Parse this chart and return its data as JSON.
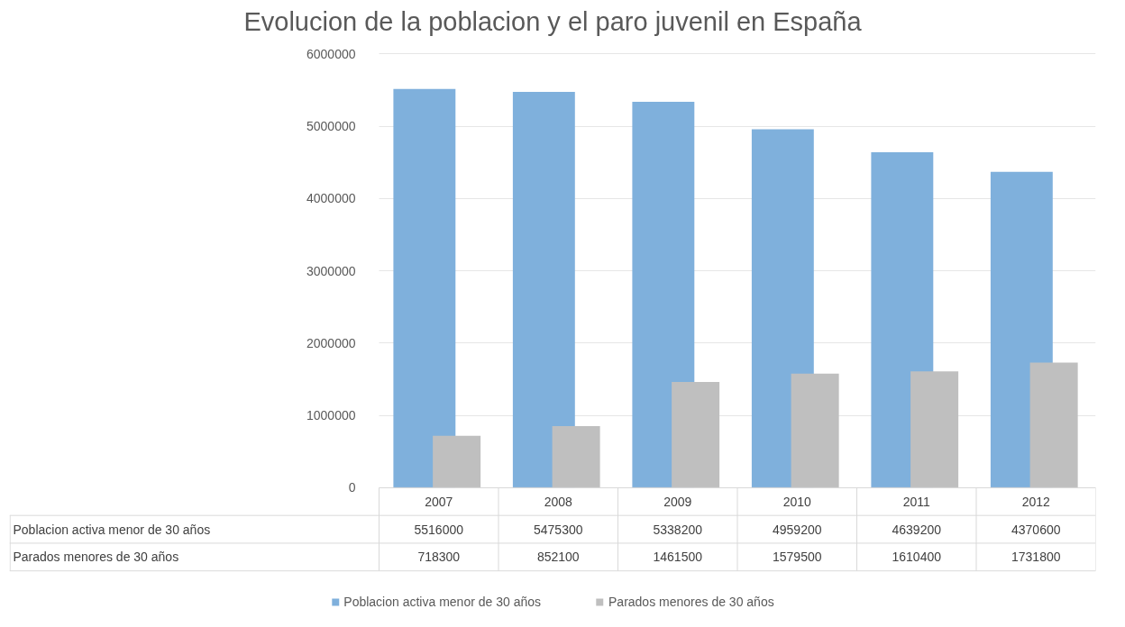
{
  "chart_data": {
    "type": "bar",
    "title": "Evolucion de la poblacion y el paro juvenil en España",
    "categories": [
      "2007",
      "2008",
      "2009",
      "2010",
      "2011",
      "2012"
    ],
    "series": [
      {
        "name": "Poblacion activa menor de 30 años",
        "color": "#7fb0dc",
        "values": [
          5516000,
          5475300,
          5338200,
          4959200,
          4639200,
          4370600
        ]
      },
      {
        "name": "Parados menores de 30 años",
        "color": "#bfbfbf",
        "values": [
          718300,
          852100,
          1461500,
          1579500,
          1610400,
          1731800
        ]
      }
    ],
    "ylim": [
      0,
      6000000
    ],
    "yticks": [
      0,
      1000000,
      2000000,
      3000000,
      4000000,
      5000000,
      6000000
    ],
    "grid": "y",
    "legend": "bottom",
    "data_labels": true
  }
}
